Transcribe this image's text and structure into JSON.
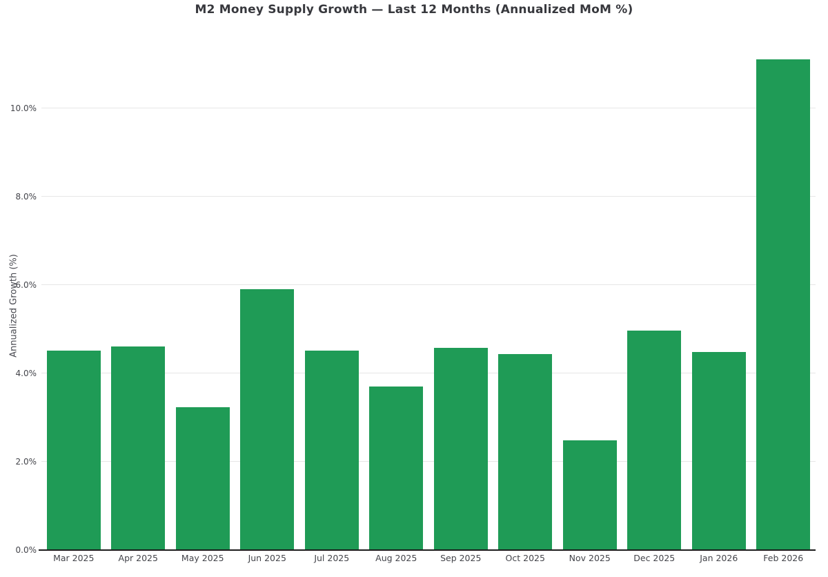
{
  "chart_data": {
    "type": "bar",
    "title": "M2 Money Supply Growth — Last 12 Months (Annualized MoM %)",
    "xlabel": "",
    "ylabel": "Annualized Growth (%)",
    "categories": [
      "Mar 2025",
      "Apr 2025",
      "May 2025",
      "Jun 2025",
      "Jul 2025",
      "Aug 2025",
      "Sep 2025",
      "Oct 2025",
      "Nov 2025",
      "Dec 2025",
      "Jan 2026",
      "Feb 2026"
    ],
    "values": [
      4.52,
      4.61,
      3.24,
      5.91,
      4.52,
      3.7,
      4.58,
      4.43,
      2.49,
      4.97,
      4.49,
      11.1
    ],
    "y_ticks": [
      0,
      2,
      4,
      6,
      8,
      10
    ],
    "y_tick_labels": [
      "0.0%",
      "2.0%",
      "4.0%",
      "6.0%",
      "8.0%",
      "10.0%"
    ],
    "ylim": [
      0,
      11.56
    ],
    "grid": "horizontal",
    "legend": "none",
    "colors": {
      "bar": "#1f9b56",
      "gridline": "#e6e6e6",
      "axis_line": "#1c1c1c",
      "title_text": "#37383d",
      "tick_text": "#43444a"
    }
  }
}
